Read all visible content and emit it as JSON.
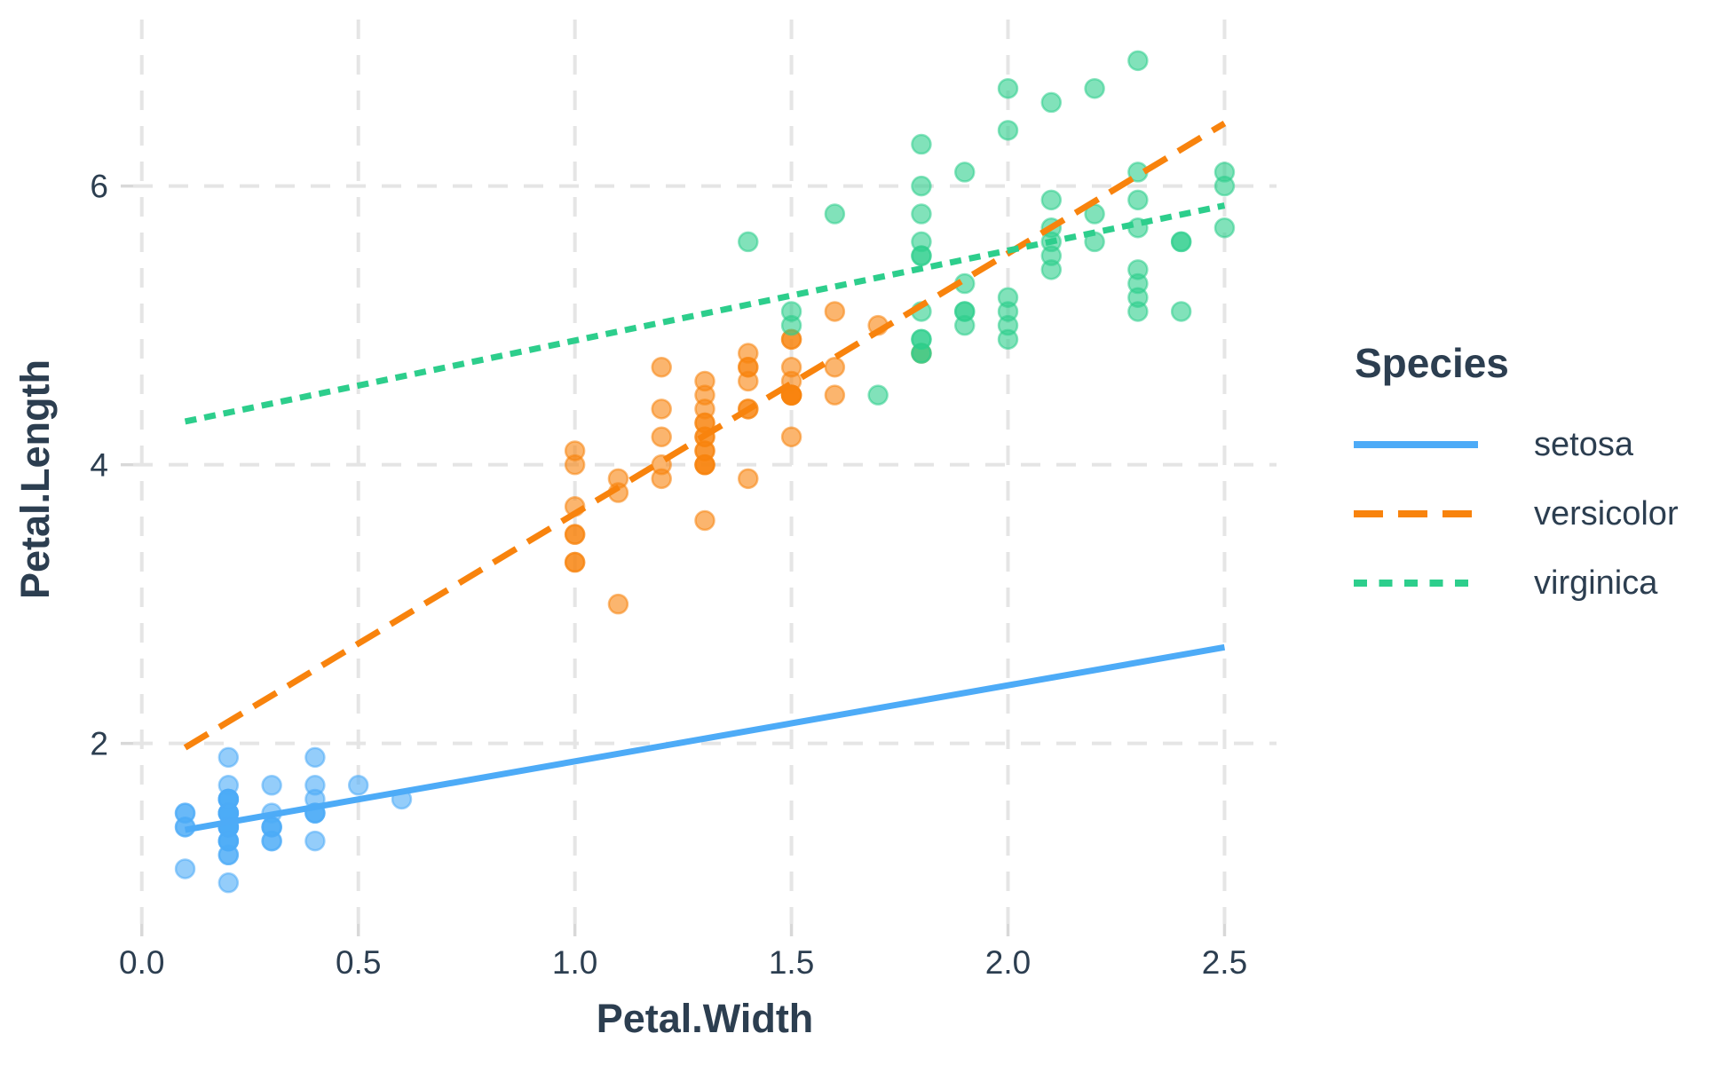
{
  "chart_data": {
    "type": "scatter",
    "title": "",
    "xlabel": "Petal.Width",
    "ylabel": "Petal.Length",
    "legend_title": "Species",
    "legend_position": "right",
    "grid": "major-dashed",
    "xlim": [
      -0.02,
      2.62
    ],
    "ylim": [
      0.705,
      7.195
    ],
    "x_ticks": [
      0.0,
      0.5,
      1.0,
      1.5,
      2.0,
      2.5
    ],
    "x_tick_labels": [
      "0.0",
      "0.5",
      "1.0",
      "1.5",
      "2.0",
      "2.5"
    ],
    "y_ticks": [
      2,
      4,
      6
    ],
    "y_tick_labels": [
      "2",
      "4",
      "6"
    ],
    "style": {
      "background": "#FFFFFF",
      "grid_color": "#E5E5E5",
      "tick_color": "#D8D8D8",
      "text_color": "#2C3E50",
      "point_alpha": 0.6
    },
    "series": [
      {
        "name": "setosa",
        "color": "#4DABF7",
        "line_style": "solid",
        "trend_line": {
          "x1": 0.1,
          "y1": 1.38,
          "x2": 2.5,
          "y2": 2.69,
          "slope": 0.5465,
          "intercept": 1.3276
        },
        "points": [
          [
            0.2,
            1.4
          ],
          [
            0.2,
            1.4
          ],
          [
            0.2,
            1.3
          ],
          [
            0.2,
            1.5
          ],
          [
            0.2,
            1.4
          ],
          [
            0.4,
            1.7
          ],
          [
            0.3,
            1.4
          ],
          [
            0.2,
            1.5
          ],
          [
            0.2,
            1.4
          ],
          [
            0.1,
            1.5
          ],
          [
            0.2,
            1.5
          ],
          [
            0.2,
            1.6
          ],
          [
            0.1,
            1.4
          ],
          [
            0.1,
            1.1
          ],
          [
            0.2,
            1.2
          ],
          [
            0.4,
            1.5
          ],
          [
            0.4,
            1.3
          ],
          [
            0.3,
            1.4
          ],
          [
            0.3,
            1.7
          ],
          [
            0.3,
            1.5
          ],
          [
            0.2,
            1.7
          ],
          [
            0.4,
            1.5
          ],
          [
            0.2,
            1.0
          ],
          [
            0.5,
            1.7
          ],
          [
            0.2,
            1.9
          ],
          [
            0.2,
            1.6
          ],
          [
            0.4,
            1.6
          ],
          [
            0.2,
            1.5
          ],
          [
            0.2,
            1.4
          ],
          [
            0.2,
            1.6
          ],
          [
            0.2,
            1.6
          ],
          [
            0.4,
            1.5
          ],
          [
            0.1,
            1.5
          ],
          [
            0.2,
            1.4
          ],
          [
            0.2,
            1.5
          ],
          [
            0.2,
            1.2
          ],
          [
            0.2,
            1.3
          ],
          [
            0.1,
            1.4
          ],
          [
            0.2,
            1.3
          ],
          [
            0.2,
            1.5
          ],
          [
            0.3,
            1.3
          ],
          [
            0.3,
            1.3
          ],
          [
            0.2,
            1.3
          ],
          [
            0.6,
            1.6
          ],
          [
            0.4,
            1.9
          ],
          [
            0.3,
            1.4
          ],
          [
            0.2,
            1.6
          ],
          [
            0.2,
            1.4
          ],
          [
            0.2,
            1.5
          ],
          [
            0.2,
            1.4
          ]
        ]
      },
      {
        "name": "versicolor",
        "color": "#F8830D",
        "line_style": "dashed",
        "trend_line": {
          "x1": 0.1,
          "y1": 1.97,
          "x2": 2.5,
          "y2": 6.45,
          "slope": 1.8693,
          "intercept": 1.7813
        },
        "points": [
          [
            1.4,
            4.7
          ],
          [
            1.5,
            4.5
          ],
          [
            1.5,
            4.9
          ],
          [
            1.3,
            4.0
          ],
          [
            1.5,
            4.6
          ],
          [
            1.3,
            4.5
          ],
          [
            1.6,
            4.7
          ],
          [
            1.0,
            3.3
          ],
          [
            1.3,
            4.6
          ],
          [
            1.4,
            3.9
          ],
          [
            1.0,
            3.5
          ],
          [
            1.5,
            4.2
          ],
          [
            1.0,
            4.0
          ],
          [
            1.4,
            4.7
          ],
          [
            1.3,
            3.6
          ],
          [
            1.4,
            4.4
          ],
          [
            1.5,
            4.5
          ],
          [
            1.0,
            4.1
          ],
          [
            1.5,
            4.5
          ],
          [
            1.1,
            3.9
          ],
          [
            1.8,
            4.8
          ],
          [
            1.3,
            4.0
          ],
          [
            1.5,
            4.9
          ],
          [
            1.2,
            4.7
          ],
          [
            1.3,
            4.3
          ],
          [
            1.4,
            4.4
          ],
          [
            1.4,
            4.8
          ],
          [
            1.7,
            5.0
          ],
          [
            1.5,
            4.5
          ],
          [
            1.0,
            3.5
          ],
          [
            1.1,
            3.8
          ],
          [
            1.0,
            3.7
          ],
          [
            1.2,
            3.9
          ],
          [
            1.6,
            5.1
          ],
          [
            1.5,
            4.5
          ],
          [
            1.6,
            4.5
          ],
          [
            1.5,
            4.7
          ],
          [
            1.3,
            4.4
          ],
          [
            1.3,
            4.1
          ],
          [
            1.3,
            4.0
          ],
          [
            1.2,
            4.4
          ],
          [
            1.4,
            4.6
          ],
          [
            1.2,
            4.0
          ],
          [
            1.0,
            3.3
          ],
          [
            1.3,
            4.2
          ],
          [
            1.2,
            4.2
          ],
          [
            1.3,
            4.2
          ],
          [
            1.3,
            4.3
          ],
          [
            1.1,
            3.0
          ],
          [
            1.3,
            4.1
          ]
        ]
      },
      {
        "name": "virginica",
        "color": "#2DCE8C",
        "line_style": "dotted",
        "trend_line": {
          "x1": 0.1,
          "y1": 4.31,
          "x2": 2.5,
          "y2": 5.86,
          "slope": 0.6473,
          "intercept": 4.2407
        },
        "points": [
          [
            2.5,
            6.0
          ],
          [
            1.9,
            5.1
          ],
          [
            2.1,
            5.9
          ],
          [
            1.8,
            5.6
          ],
          [
            2.2,
            5.8
          ],
          [
            2.1,
            6.6
          ],
          [
            1.7,
            4.5
          ],
          [
            1.8,
            6.3
          ],
          [
            1.8,
            5.8
          ],
          [
            2.5,
            6.1
          ],
          [
            2.0,
            5.1
          ],
          [
            1.9,
            5.3
          ],
          [
            2.1,
            5.5
          ],
          [
            2.0,
            5.0
          ],
          [
            2.4,
            5.1
          ],
          [
            2.3,
            5.3
          ],
          [
            1.8,
            5.5
          ],
          [
            2.2,
            6.7
          ],
          [
            2.3,
            6.9
          ],
          [
            1.5,
            5.0
          ],
          [
            2.3,
            5.7
          ],
          [
            2.0,
            4.9
          ],
          [
            2.0,
            6.7
          ],
          [
            1.8,
            4.9
          ],
          [
            2.1,
            5.7
          ],
          [
            1.8,
            6.0
          ],
          [
            1.8,
            4.8
          ],
          [
            1.8,
            4.9
          ],
          [
            2.1,
            5.6
          ],
          [
            1.6,
            5.8
          ],
          [
            1.9,
            6.1
          ],
          [
            2.0,
            6.4
          ],
          [
            2.2,
            5.6
          ],
          [
            1.5,
            5.1
          ],
          [
            1.4,
            5.6
          ],
          [
            2.3,
            6.1
          ],
          [
            2.4,
            5.6
          ],
          [
            1.8,
            5.5
          ],
          [
            1.8,
            4.8
          ],
          [
            2.1,
            5.4
          ],
          [
            2.4,
            5.6
          ],
          [
            2.3,
            5.1
          ],
          [
            1.9,
            5.1
          ],
          [
            2.3,
            5.9
          ],
          [
            2.5,
            5.7
          ],
          [
            2.3,
            5.2
          ],
          [
            1.9,
            5.0
          ],
          [
            2.0,
            5.2
          ],
          [
            2.3,
            5.4
          ],
          [
            1.8,
            5.1
          ]
        ]
      }
    ]
  }
}
